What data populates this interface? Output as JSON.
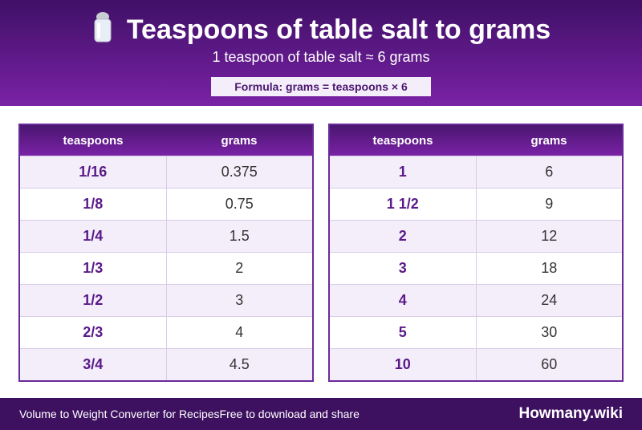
{
  "header": {
    "title": "Teaspoons of table salt to grams",
    "subtitle": "1 teaspoon of table salt ≈ 6 grams",
    "formula": "Formula: grams = teaspoons × 6"
  },
  "tables": [
    {
      "columns": [
        "teaspoons",
        "grams"
      ],
      "rows": [
        [
          "1/16",
          "0.375"
        ],
        [
          "1/8",
          "0.75"
        ],
        [
          "1/4",
          "1.5"
        ],
        [
          "1/3",
          "2"
        ],
        [
          "1/2",
          "3"
        ],
        [
          "2/3",
          "4"
        ],
        [
          "3/4",
          "4.5"
        ]
      ]
    },
    {
      "columns": [
        "teaspoons",
        "grams"
      ],
      "rows": [
        [
          "1",
          "6"
        ],
        [
          "1 1/2",
          "9"
        ],
        [
          "2",
          "12"
        ],
        [
          "3",
          "18"
        ],
        [
          "4",
          "24"
        ],
        [
          "5",
          "30"
        ],
        [
          "10",
          "60"
        ]
      ]
    }
  ],
  "footer": {
    "left": "Volume to Weight Converter for Recipes",
    "middle": "Free to download and share",
    "brand": "Howmany.wiki"
  }
}
